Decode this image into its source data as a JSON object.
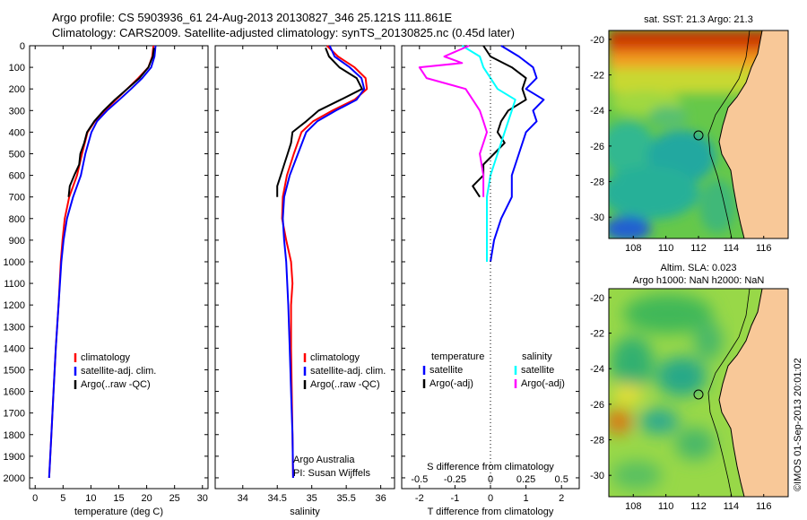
{
  "header": {
    "line1": "Argo profile: CS 5903936_61 24-Aug-2013 20130827_346 25.121S 111.861E",
    "line2": "Climatology: CARS2009. Satellite-adjusted climatology: synTS_20130825.nc (0.45d later)"
  },
  "colors": {
    "climatology": "#ff0000",
    "satellite": "#0000ff",
    "argo": "#000000",
    "salinity_satellite": "#00ffff",
    "salinity_argo": "#ff00ff",
    "land": "#f8c898"
  },
  "chart_data": [
    {
      "type": "line",
      "name": "temperature-panel",
      "xlabel": "temperature (deg C)",
      "xlim": [
        -1,
        31
      ],
      "xticks": [
        0,
        5,
        10,
        15,
        20,
        25,
        30
      ],
      "ylim": [
        2050,
        0
      ],
      "yticks": [
        0,
        100,
        200,
        300,
        400,
        500,
        600,
        700,
        800,
        900,
        1000,
        1100,
        1200,
        1300,
        1400,
        1500,
        1600,
        1700,
        1800,
        1900,
        2000
      ],
      "grid": false,
      "legend": [
        "climatology",
        "satellite-adj. clim.",
        "Argo(..raw -QC)"
      ],
      "series": [
        {
          "name": "climatology",
          "color": "climatology",
          "points": [
            [
              21.2,
              0
            ],
            [
              21.0,
              50
            ],
            [
              20.3,
              100
            ],
            [
              18.5,
              150
            ],
            [
              16.5,
              200
            ],
            [
              14.5,
              250
            ],
            [
              12.5,
              300
            ],
            [
              10.7,
              350
            ],
            [
              9.4,
              400
            ],
            [
              8.4,
              500
            ],
            [
              7.5,
              600
            ],
            [
              6.1,
              700
            ],
            [
              5.3,
              800
            ],
            [
              4.9,
              900
            ],
            [
              4.6,
              1000
            ],
            [
              4.2,
              1200
            ],
            [
              3.7,
              1400
            ],
            [
              3.3,
              1600
            ],
            [
              2.9,
              1800
            ],
            [
              2.5,
              2000
            ]
          ]
        },
        {
          "name": "satellite-adj. clim.",
          "color": "satellite",
          "points": [
            [
              21.6,
              0
            ],
            [
              21.4,
              50
            ],
            [
              20.8,
              100
            ],
            [
              19.2,
              150
            ],
            [
              17.2,
              200
            ],
            [
              15.1,
              250
            ],
            [
              12.9,
              300
            ],
            [
              11.1,
              350
            ],
            [
              10.1,
              400
            ],
            [
              9.0,
              500
            ],
            [
              8.2,
              600
            ],
            [
              6.8,
              700
            ],
            [
              5.7,
              800
            ],
            [
              5.1,
              900
            ],
            [
              4.7,
              1000
            ],
            [
              4.2,
              1200
            ],
            [
              3.7,
              1400
            ],
            [
              3.3,
              1600
            ],
            [
              2.9,
              1800
            ],
            [
              2.5,
              2000
            ]
          ]
        },
        {
          "name": "Argo(..raw -QC)",
          "color": "argo",
          "points": [
            [
              21.3,
              10
            ],
            [
              21.1,
              50
            ],
            [
              20.3,
              100
            ],
            [
              18.7,
              150
            ],
            [
              16.5,
              200
            ],
            [
              14.3,
              250
            ],
            [
              12.3,
              300
            ],
            [
              10.6,
              350
            ],
            [
              9.3,
              400
            ],
            [
              8.8,
              450
            ],
            [
              8.1,
              500
            ],
            [
              7.9,
              550
            ],
            [
              7.0,
              600
            ],
            [
              6.2,
              650
            ],
            [
              6.0,
              700
            ]
          ]
        }
      ]
    },
    {
      "type": "line",
      "name": "salinity-panel",
      "xlabel": "salinity",
      "xlim": [
        33.6,
        36.2
      ],
      "xticks": [
        34,
        34.5,
        35,
        35.5,
        36
      ],
      "xticklabels": [
        "34",
        "34.5",
        "35",
        "35.5",
        "36"
      ],
      "ylim": [
        2050,
        0
      ],
      "grid": false,
      "legend": [
        "climatology",
        "satellite-adj. clim.",
        "Argo(..raw -QC)"
      ],
      "annotation": [
        "Argo Australia",
        "PI: Susan Wijffels"
      ],
      "series": [
        {
          "name": "climatology",
          "color": "climatology",
          "points": [
            [
              35.22,
              0
            ],
            [
              35.38,
              50
            ],
            [
              35.62,
              100
            ],
            [
              35.78,
              150
            ],
            [
              35.8,
              200
            ],
            [
              35.62,
              250
            ],
            [
              35.3,
              300
            ],
            [
              35.02,
              350
            ],
            [
              34.85,
              400
            ],
            [
              34.74,
              500
            ],
            [
              34.64,
              600
            ],
            [
              34.58,
              700
            ],
            [
              34.57,
              800
            ],
            [
              34.63,
              900
            ],
            [
              34.7,
              1000
            ],
            [
              34.72,
              1100
            ],
            [
              34.7,
              1200
            ],
            [
              34.7,
              1400
            ],
            [
              34.71,
              1600
            ],
            [
              34.72,
              1800
            ],
            [
              34.73,
              2000
            ]
          ]
        },
        {
          "name": "satellite-adj. clim.",
          "color": "satellite",
          "points": [
            [
              35.26,
              0
            ],
            [
              35.33,
              50
            ],
            [
              35.55,
              100
            ],
            [
              35.72,
              150
            ],
            [
              35.76,
              200
            ],
            [
              35.65,
              250
            ],
            [
              35.35,
              300
            ],
            [
              35.08,
              350
            ],
            [
              34.92,
              400
            ],
            [
              34.8,
              500
            ],
            [
              34.68,
              600
            ],
            [
              34.6,
              700
            ],
            [
              34.58,
              800
            ],
            [
              34.6,
              900
            ],
            [
              34.63,
              1000
            ],
            [
              34.66,
              1200
            ],
            [
              34.68,
              1400
            ],
            [
              34.7,
              1600
            ],
            [
              34.72,
              1800
            ],
            [
              34.73,
              2000
            ]
          ]
        },
        {
          "name": "Argo(..raw -QC)",
          "color": "argo",
          "points": [
            [
              35.2,
              10
            ],
            [
              35.25,
              50
            ],
            [
              35.4,
              100
            ],
            [
              35.65,
              150
            ],
            [
              35.73,
              200
            ],
            [
              35.42,
              250
            ],
            [
              35.1,
              300
            ],
            [
              34.92,
              350
            ],
            [
              34.72,
              400
            ],
            [
              34.7,
              450
            ],
            [
              34.65,
              500
            ],
            [
              34.6,
              550
            ],
            [
              34.55,
              600
            ],
            [
              34.5,
              650
            ],
            [
              34.5,
              700
            ]
          ]
        }
      ]
    },
    {
      "type": "line",
      "name": "difference-panel",
      "xlabel": "T difference from climatology",
      "xlabel_top": "S difference from climatology",
      "xlim": [
        -2.5,
        2.5
      ],
      "xticks": [
        -2,
        -1,
        0,
        1,
        2
      ],
      "top_ticklabels": [
        "-0.5",
        "-0.25",
        "0",
        "0.25",
        "0.5"
      ],
      "ylim": [
        2050,
        0
      ],
      "grid": false,
      "legend_titles": [
        "temperature",
        "salinity"
      ],
      "legend": [
        "satellite",
        "Argo(-adj)",
        "satellite",
        "Argo(-adj)"
      ],
      "series": [
        {
          "name": "satellite",
          "group": "temperature",
          "color": "satellite",
          "points": [
            [
              0.3,
              0
            ],
            [
              0.8,
              50
            ],
            [
              1.2,
              100
            ],
            [
              1.3,
              150
            ],
            [
              1.0,
              200
            ],
            [
              1.5,
              250
            ],
            [
              1.2,
              300
            ],
            [
              1.3,
              350
            ],
            [
              1.0,
              400
            ],
            [
              0.8,
              500
            ],
            [
              0.6,
              600
            ],
            [
              0.6,
              700
            ],
            [
              0.3,
              800
            ],
            [
              0.1,
              900
            ],
            [
              0.0,
              1000
            ]
          ]
        },
        {
          "name": "Argo(-adj)",
          "group": "temperature",
          "color": "argo",
          "points": [
            [
              -0.2,
              0
            ],
            [
              0.0,
              50
            ],
            [
              0.6,
              100
            ],
            [
              1.0,
              150
            ],
            [
              0.9,
              200
            ],
            [
              1.0,
              250
            ],
            [
              0.5,
              300
            ],
            [
              0.3,
              350
            ],
            [
              0.2,
              400
            ],
            [
              0.4,
              450
            ],
            [
              0.1,
              500
            ],
            [
              -0.2,
              550
            ],
            [
              -0.2,
              600
            ],
            [
              -0.5,
              650
            ],
            [
              -0.3,
              700
            ]
          ]
        },
        {
          "name": "satellite",
          "group": "salinity",
          "color": "salinity_satellite",
          "points": [
            [
              -0.8,
              0
            ],
            [
              -0.3,
              50
            ],
            [
              -0.2,
              100
            ],
            [
              0.0,
              150
            ],
            [
              0.2,
              200
            ],
            [
              0.7,
              250
            ],
            [
              0.6,
              300
            ],
            [
              0.4,
              400
            ],
            [
              0.2,
              500
            ],
            [
              0.0,
              600
            ],
            [
              -0.1,
              700
            ],
            [
              -0.1,
              800
            ],
            [
              -0.1,
              900
            ],
            [
              -0.1,
              1000
            ]
          ]
        },
        {
          "name": "Argo(-adj)",
          "group": "salinity",
          "color": "salinity_argo",
          "points": [
            [
              -0.6,
              0
            ],
            [
              -1.3,
              50
            ],
            [
              -0.8,
              80
            ],
            [
              -2.0,
              100
            ],
            [
              -1.8,
              150
            ],
            [
              -0.7,
              200
            ],
            [
              -0.5,
              250
            ],
            [
              -0.3,
              300
            ],
            [
              -0.2,
              350
            ],
            [
              -0.1,
              400
            ],
            [
              -0.2,
              450
            ],
            [
              -0.3,
              500
            ],
            [
              -0.2,
              600
            ],
            [
              -0.2,
              650
            ],
            [
              -0.2,
              700
            ]
          ]
        }
      ]
    },
    {
      "type": "heatmap",
      "name": "sst-map",
      "title": "sat. SST: 21.3 Argo: 21.3",
      "xticks": [
        108,
        110,
        112,
        114,
        116
      ],
      "yticks": [
        -20,
        -22,
        -24,
        -26,
        -28,
        -30
      ],
      "xlim": [
        106.5,
        117.5
      ],
      "ylim": [
        -31.2,
        -19.5
      ],
      "marker": {
        "lon": 111.861,
        "lat": -25.121
      }
    },
    {
      "type": "heatmap",
      "name": "sla-map",
      "title": "Altim. SLA: 0.023",
      "title2": "Argo h1000: NaN h2000: NaN",
      "xticks": [
        108,
        110,
        112,
        114,
        116
      ],
      "yticks": [
        -20,
        -22,
        -24,
        -26,
        -28,
        -30
      ],
      "xlim": [
        106.5,
        117.5
      ],
      "ylim": [
        -31.2,
        -19.5
      ],
      "marker": {
        "lon": 111.861,
        "lat": -25.121
      }
    }
  ],
  "side_label": "©IMOS 01-Sep-2013 20:01:02"
}
